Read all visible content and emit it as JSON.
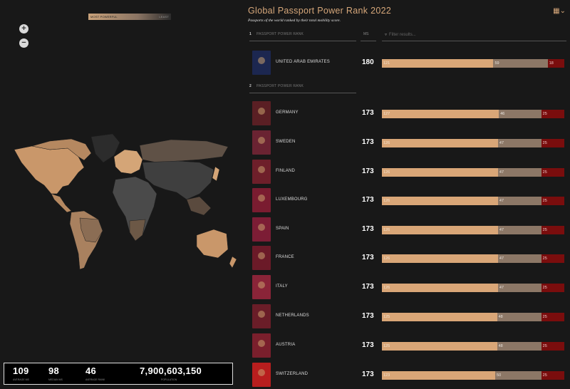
{
  "header": {
    "title": "Global Passport Power Rank 2022",
    "subtitle": "Passports of the world ranked by their total mobility score.",
    "calendar_icon": "calendar-icon"
  },
  "legend": {
    "left": "MOST POWERFUL",
    "right": "LEAST"
  },
  "zoom": {
    "in": "+",
    "out": "−"
  },
  "list_headers": {
    "rank1_num": "1",
    "rank1_label": "PASSPORT POWER RANK",
    "rank2_num": "2",
    "rank2_label": "PASSPORT POWER RANK",
    "ms": "MS",
    "filter_placeholder": "Filter results..."
  },
  "stats": [
    {
      "value": "109",
      "label": "AVERAGE MS"
    },
    {
      "value": "98",
      "label": "MEDIAN MS"
    },
    {
      "value": "46",
      "label": "AVERAGE RANK"
    },
    {
      "value": "7,900,603,150",
      "label": "POPULATION"
    }
  ],
  "rows": [
    {
      "country": "UNITED ARAB EMIRATES",
      "ms": "180",
      "a": "121",
      "b": "59",
      "c": "18",
      "color": "#1c2750"
    },
    {
      "country": "GERMANY",
      "ms": "173",
      "a": "127",
      "b": "46",
      "c": "25",
      "color": "#5a1f24"
    },
    {
      "country": "SWEDEN",
      "ms": "173",
      "a": "126",
      "b": "47",
      "c": "25",
      "color": "#6a2332"
    },
    {
      "country": "FINLAND",
      "ms": "173",
      "a": "126",
      "b": "47",
      "c": "25",
      "color": "#6e1f2a"
    },
    {
      "country": "LUXEMBOURG",
      "ms": "173",
      "a": "126",
      "b": "47",
      "c": "25",
      "color": "#7a1c30"
    },
    {
      "country": "SPAIN",
      "ms": "173",
      "a": "126",
      "b": "47",
      "c": "25",
      "color": "#7c1d35"
    },
    {
      "country": "FRANCE",
      "ms": "173",
      "a": "126",
      "b": "47",
      "c": "25",
      "color": "#6b1a28"
    },
    {
      "country": "ITALY",
      "ms": "173",
      "a": "126",
      "b": "47",
      "c": "25",
      "color": "#8a2438"
    },
    {
      "country": "NETHERLANDS",
      "ms": "173",
      "a": "125",
      "b": "48",
      "c": "25",
      "color": "#6a1d28"
    },
    {
      "country": "AUSTRIA",
      "ms": "173",
      "a": "125",
      "b": "48",
      "c": "25",
      "color": "#7a1f2c"
    },
    {
      "country": "SWITZERLAND",
      "ms": "173",
      "a": "123",
      "b": "50",
      "c": "25",
      "color": "#b81e1e"
    }
  ]
}
